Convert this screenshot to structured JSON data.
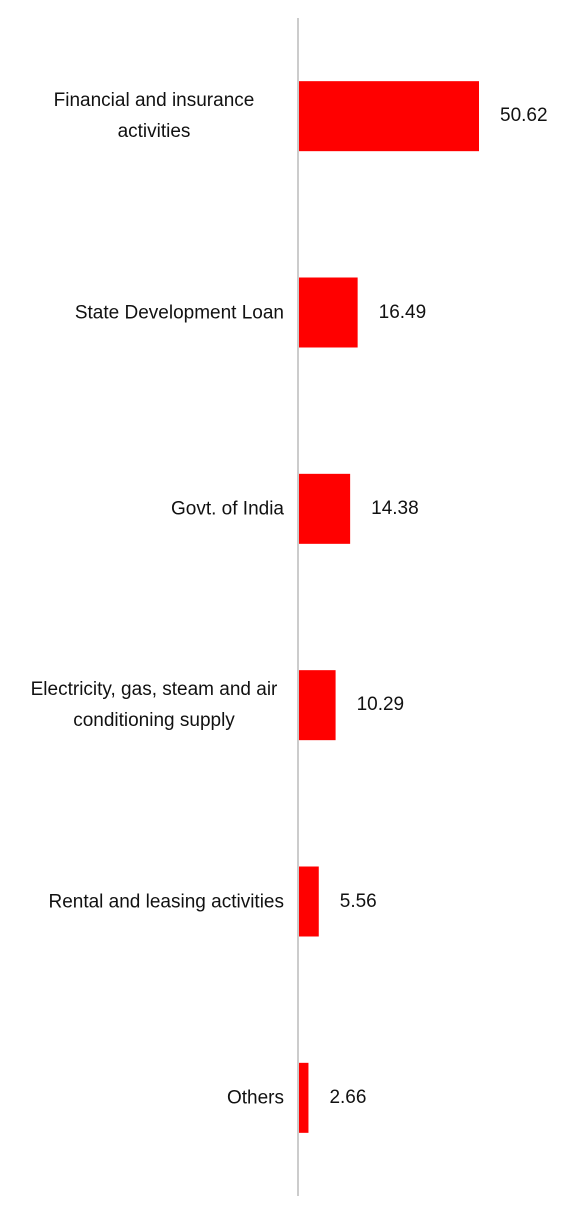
{
  "chart_data": {
    "type": "barh",
    "categories": [
      "Financial and insurance activities",
      "State Development Loan",
      "Govt. of India",
      "Electricity, gas, steam and air conditioning supply",
      "Rental and leasing activities",
      "Others"
    ],
    "values": [
      50.62,
      16.49,
      14.38,
      10.29,
      5.56,
      2.66
    ],
    "color": "#ff0000"
  }
}
